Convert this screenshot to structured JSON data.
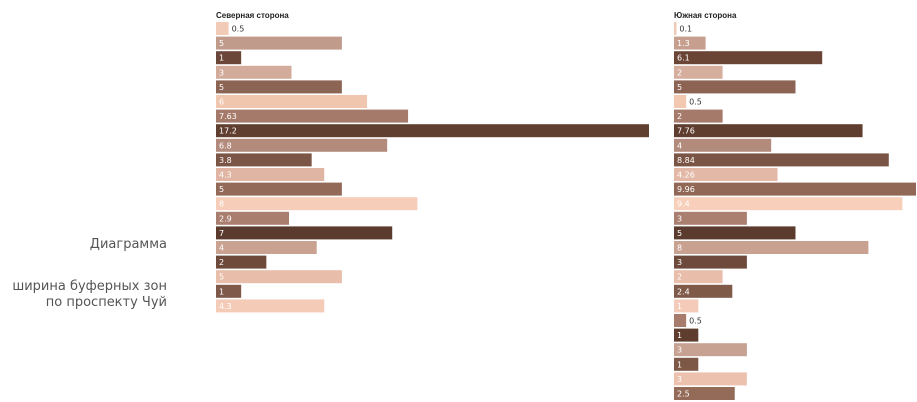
{
  "caption": {
    "title": "Диаграмма",
    "subtitle_line1": "ширина буферных зон",
    "subtitle_line2": "по проспекту Чуй"
  },
  "palette": [
    "#ecc7b5",
    "#c3998a",
    "#6b4638",
    "#d2aa9a",
    "#8d6555",
    "#f3c9b2",
    "#a77a6b",
    "#61402f",
    "#b38a7b",
    "#7c5646",
    "#e1b6a4",
    "#925f52",
    "#f7cdb9",
    "#b18a7d",
    "#5a3a2d"
  ],
  "label_inside_color": "#ffffff",
  "label_outside_color": "#333333",
  "chart_data": [
    {
      "type": "bar",
      "orientation": "horizontal",
      "title": "Северная сторона",
      "values": [
        0.5,
        5,
        1,
        3,
        5,
        6,
        7.63,
        17.2,
        6.8,
        3.8,
        4.3,
        5,
        8,
        2.9,
        7,
        4,
        2,
        5,
        1,
        4.3
      ],
      "labels": [
        "0.5",
        "5",
        "1",
        "3",
        "5",
        "6",
        "7.63",
        "17.2",
        "6.8",
        "3.8",
        "4.3",
        "5",
        "8",
        "2.9",
        "7",
        "4",
        "2",
        "5",
        "1",
        "4.3"
      ],
      "colors": [
        "#f2cbb8",
        "#c09a8b",
        "#6b4739",
        "#d3ab9b",
        "#8c6454",
        "#f0c6ae",
        "#a67a6b",
        "#613f30",
        "#b28b7c",
        "#7b5545",
        "#e0b5a3",
        "#936958",
        "#f6cdb9",
        "#a97e6f",
        "#5b3b2e",
        "#c9a291",
        "#6e4a3b",
        "#e8bda9",
        "#7f5949",
        "#f3cbb7"
      ],
      "xlim": [
        0,
        17.2
      ]
    },
    {
      "type": "bar",
      "orientation": "horizontal",
      "title": "Южная сторона",
      "values": [
        0.1,
        1.3,
        6.1,
        2,
        5,
        0.5,
        2,
        7.76,
        4,
        8.84,
        4.26,
        9.96,
        9.4,
        3,
        5,
        8,
        3,
        2,
        2.4,
        1,
        0.5,
        1,
        3,
        1,
        3,
        2.5
      ],
      "labels": [
        "0.1",
        "1.3",
        "6.1",
        "2",
        "5",
        "0.5",
        "2",
        "7.76",
        "4",
        "8.84",
        "4.26",
        "9.96",
        "9.4",
        "3",
        "5",
        "8",
        "3",
        "2",
        "2.4",
        "1",
        "0.5",
        "1",
        "3",
        "1",
        "3",
        "2.5"
      ],
      "colors": [
        "#f0c9b6",
        "#c79f8f",
        "#6a4536",
        "#d6ae9e",
        "#8d6454",
        "#f3c8b1",
        "#a67a6a",
        "#5f3e2f",
        "#b38b7c",
        "#7a5445",
        "#e3b8a6",
        "#916756",
        "#f7cfbb",
        "#aa7f70",
        "#5b3b2d",
        "#c9a191",
        "#6d4a3b",
        "#e8bda9",
        "#7f5a49",
        "#f4cbb8",
        "#a77c6d",
        "#5e3d2f",
        "#c7a192",
        "#7d5847",
        "#ecc2af",
        "#946a59"
      ],
      "xlim": [
        0,
        9.96
      ]
    }
  ]
}
